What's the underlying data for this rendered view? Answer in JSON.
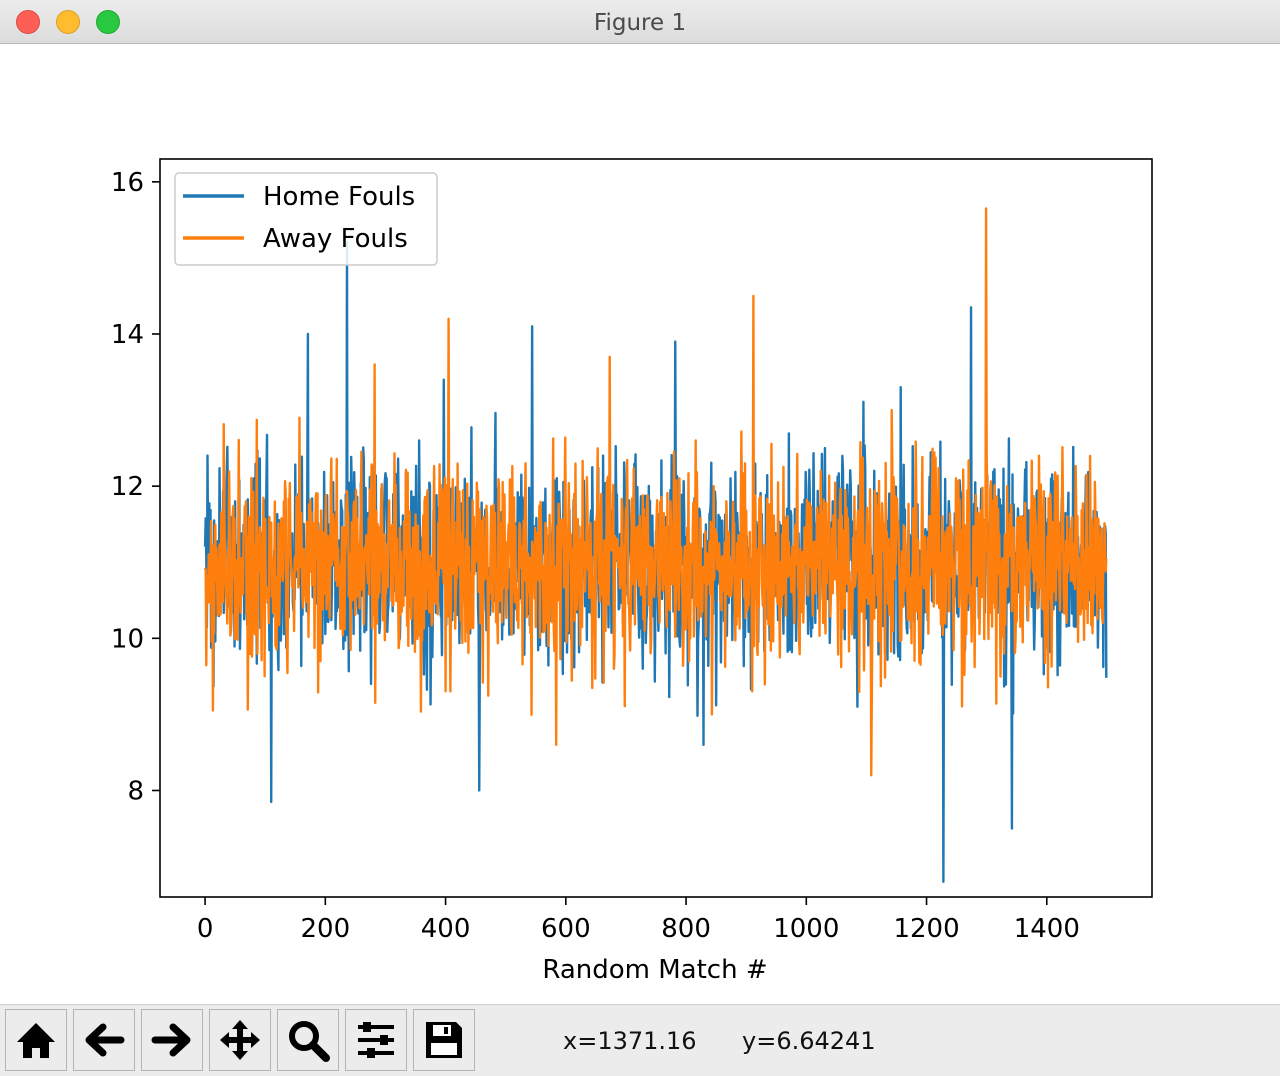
{
  "window": {
    "title": "Figure 1"
  },
  "toolbar": {
    "buttons": [
      {
        "name": "home-button",
        "icon": "home-icon"
      },
      {
        "name": "back-button",
        "icon": "arrow-left-icon"
      },
      {
        "name": "forward-button",
        "icon": "arrow-right-icon"
      },
      {
        "name": "pan-button",
        "icon": "move-icon"
      },
      {
        "name": "zoom-button",
        "icon": "magnifier-icon"
      },
      {
        "name": "configure-subplots-button",
        "icon": "sliders-icon"
      },
      {
        "name": "save-button",
        "icon": "floppy-disk-icon"
      }
    ],
    "x_readout": "x=1371.16",
    "y_readout": "y=6.64241"
  },
  "chart_data": {
    "type": "line",
    "xlabel": "Random Match #",
    "ylabel": "",
    "xlim": [
      -75,
      1575
    ],
    "ylim": [
      6.6,
      16.3
    ],
    "xticks": [
      0,
      200,
      400,
      600,
      800,
      1000,
      1200,
      1400
    ],
    "yticks": [
      8,
      10,
      12,
      14,
      16
    ],
    "legend_position": "upper-left",
    "grid": false,
    "n_points": 1500,
    "series": [
      {
        "name": "Home Fouls",
        "color": "#1f77b4",
        "mean": 11.0,
        "approx_min": 6.8,
        "approx_max": 15.2,
        "values_sample": [
          11.8,
          7.85,
          14.0,
          15.2,
          9.4,
          12.6,
          13.4,
          8.0,
          14.1,
          10.2,
          12.0,
          9.6,
          13.9,
          8.6,
          11.4,
          10.8,
          12.5,
          9.1,
          13.3,
          6.8,
          14.35,
          7.5,
          12.1,
          10.9
        ]
      },
      {
        "name": "Away Fouls",
        "color": "#ff7f0e",
        "mean": 11.0,
        "approx_min": 7.9,
        "approx_max": 15.65,
        "values_sample": [
          10.3,
          9.5,
          12.9,
          11.6,
          13.6,
          9.9,
          14.2,
          10.5,
          12.3,
          8.6,
          13.7,
          10.1,
          11.8,
          9.0,
          14.5,
          10.6,
          12.2,
          8.2,
          13.0,
          10.4,
          15.65,
          9.8,
          12.4,
          10.2
        ]
      }
    ]
  }
}
